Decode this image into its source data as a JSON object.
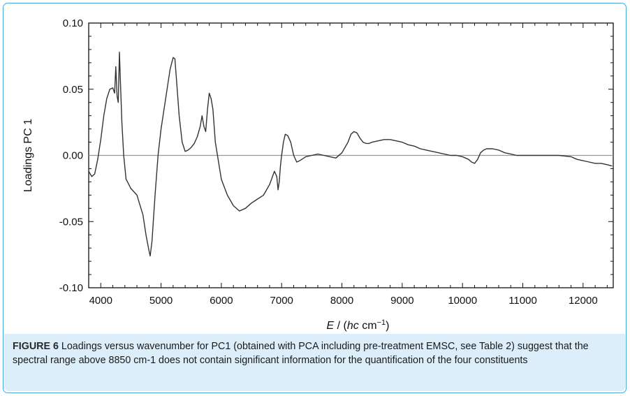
{
  "chart_data": {
    "type": "line",
    "title": "",
    "xlabel_parts": {
      "var": "E",
      "sep": " / (",
      "unit_var": "hc",
      "unit": " cm",
      "exp": "−1",
      "close": ")"
    },
    "ylabel": "Loadings PC 1",
    "xlim": [
      3800,
      12500
    ],
    "ylim": [
      -0.1,
      0.1
    ],
    "x_ticks": [
      4000,
      5000,
      6000,
      7000,
      8000,
      9000,
      10000,
      11000,
      12000
    ],
    "y_ticks": [
      0.1,
      0.05,
      0.0,
      -0.05,
      -0.1
    ],
    "y_tick_labels": [
      "0.10",
      "0.05",
      "0.00",
      "-0.05",
      "-0.10"
    ],
    "zero_line": true,
    "grid": false,
    "series": [
      {
        "color": "#333333",
        "x": [
          3800,
          3850,
          3900,
          3950,
          4000,
          4050,
          4100,
          4150,
          4200,
          4230,
          4250,
          4270,
          4290,
          4310,
          4330,
          4350,
          4380,
          4420,
          4500,
          4600,
          4700,
          4750,
          4800,
          4820,
          4850,
          4900,
          4950,
          5000,
          5050,
          5100,
          5150,
          5200,
          5230,
          5260,
          5300,
          5350,
          5400,
          5450,
          5500,
          5550,
          5600,
          5650,
          5680,
          5710,
          5740,
          5770,
          5800,
          5830,
          5860,
          5900,
          6000,
          6100,
          6200,
          6300,
          6400,
          6500,
          6600,
          6700,
          6800,
          6880,
          6920,
          6940,
          6960,
          6980,
          7000,
          7030,
          7060,
          7100,
          7150,
          7200,
          7250,
          7300,
          7400,
          7500,
          7600,
          7700,
          7800,
          7900,
          8000,
          8100,
          8150,
          8200,
          8250,
          8300,
          8350,
          8400,
          8450,
          8500,
          8600,
          8700,
          8800,
          8900,
          9000,
          9100,
          9200,
          9300,
          9400,
          9500,
          9600,
          9700,
          9800,
          9900,
          10000,
          10050,
          10100,
          10150,
          10200,
          10250,
          10300,
          10350,
          10400,
          10500,
          10600,
          10700,
          10800,
          10900,
          11000,
          11200,
          11400,
          11600,
          11800,
          11900,
          12000,
          12100,
          12200,
          12300,
          12400,
          12480
        ],
        "y": [
          -0.012,
          -0.016,
          -0.014,
          -0.003,
          0.012,
          0.03,
          0.043,
          0.05,
          0.051,
          0.047,
          0.067,
          0.045,
          0.04,
          0.078,
          0.05,
          0.025,
          0.0,
          -0.018,
          -0.025,
          -0.03,
          -0.045,
          -0.06,
          -0.072,
          -0.076,
          -0.065,
          -0.03,
          0.0,
          0.02,
          0.035,
          0.05,
          0.065,
          0.074,
          0.073,
          0.055,
          0.03,
          0.01,
          0.003,
          0.004,
          0.006,
          0.009,
          0.014,
          0.022,
          0.03,
          0.022,
          0.018,
          0.035,
          0.047,
          0.043,
          0.035,
          0.01,
          -0.018,
          -0.03,
          -0.038,
          -0.042,
          -0.04,
          -0.036,
          -0.033,
          -0.03,
          -0.022,
          -0.012,
          -0.016,
          -0.026,
          -0.02,
          -0.008,
          -0.0,
          0.01,
          0.016,
          0.015,
          0.01,
          0.0,
          -0.005,
          -0.004,
          -0.001,
          0.0,
          0.001,
          0.0,
          -0.001,
          -0.002,
          0.002,
          0.01,
          0.016,
          0.018,
          0.017,
          0.013,
          0.01,
          0.009,
          0.009,
          0.01,
          0.011,
          0.012,
          0.012,
          0.011,
          0.01,
          0.008,
          0.007,
          0.005,
          0.004,
          0.003,
          0.002,
          0.001,
          0.0,
          0.0,
          -0.001,
          -0.002,
          -0.003,
          -0.005,
          -0.006,
          -0.003,
          0.002,
          0.004,
          0.005,
          0.005,
          0.004,
          0.002,
          0.001,
          0.0,
          0.0,
          0.0,
          0.0,
          0.0,
          -0.001,
          -0.003,
          -0.004,
          -0.005,
          -0.006,
          -0.006,
          -0.007,
          -0.008
        ]
      }
    ]
  },
  "caption": {
    "label": "FIGURE 6",
    "text": " Loadings versus wavenumber for PC1 (obtained with PCA including pre-treatment EMSC, see Table 2) suggest that the spectral range above 8850 cm-1 does not contain significant information for the quantification of the four constituents"
  }
}
